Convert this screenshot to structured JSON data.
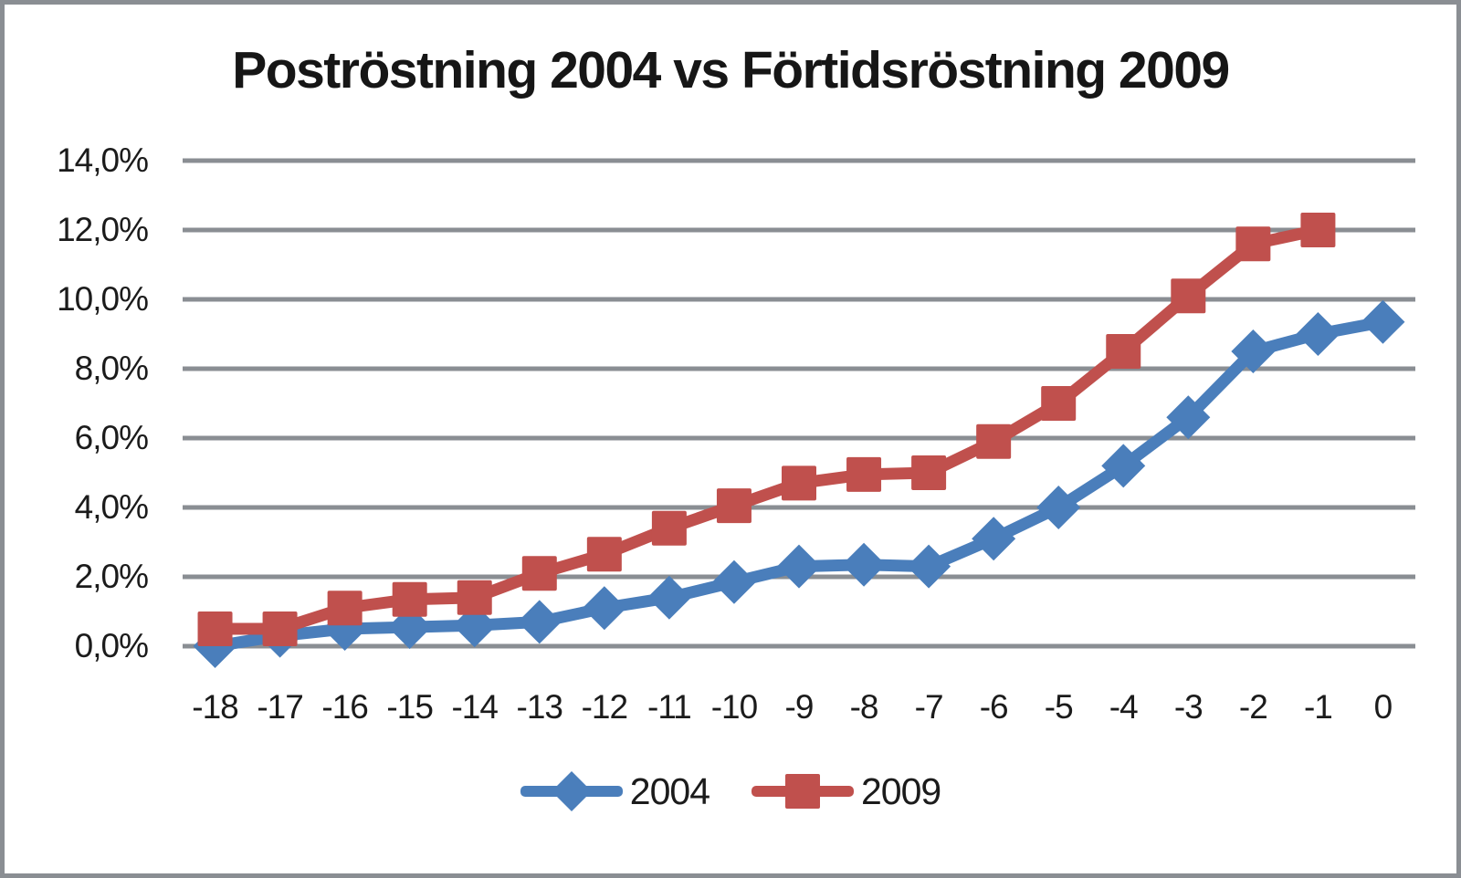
{
  "chart_data": {
    "type": "line",
    "title": "Poströstning 2004 vs Förtidsröstning 2009",
    "categories": [
      "-18",
      "-17",
      "-16",
      "-15",
      "-14",
      "-13",
      "-12",
      "-11",
      "-10",
      "-9",
      "-8",
      "-7",
      "-6",
      "-5",
      "-4",
      "-3",
      "-2",
      "-1",
      "0"
    ],
    "series": [
      {
        "name": "2004",
        "color": "#4a7ebb",
        "marker": "diamond",
        "values": [
          0.0,
          0.3,
          0.5,
          0.55,
          0.6,
          0.7,
          1.1,
          1.4,
          1.85,
          2.3,
          2.35,
          2.3,
          3.1,
          4.0,
          5.2,
          6.6,
          8.5,
          9.0,
          9.35
        ]
      },
      {
        "name": "2009",
        "color": "#c0504d",
        "marker": "square",
        "values": [
          0.5,
          0.5,
          1.1,
          1.35,
          1.4,
          2.1,
          2.65,
          3.4,
          4.05,
          4.7,
          4.95,
          5.0,
          5.9,
          7.0,
          8.5,
          10.1,
          11.6,
          12.0,
          null
        ]
      }
    ],
    "ytick_labels": [
      "14,0%",
      "12,0%",
      "10,0%",
      "8,0%",
      "6,0%",
      "4,0%",
      "2,0%",
      "0,0%"
    ],
    "ytick_values": [
      14,
      12,
      10,
      8,
      6,
      4,
      2,
      0
    ],
    "ylim": [
      0,
      14
    ],
    "xlabel": "",
    "ylabel": "",
    "grid": "horizontal",
    "gridline_color": "#8a8e93",
    "frame_color": "#8a8e93",
    "text_color": "#1b1b1b",
    "background": "#ffffff",
    "legend_position": "bottom"
  }
}
